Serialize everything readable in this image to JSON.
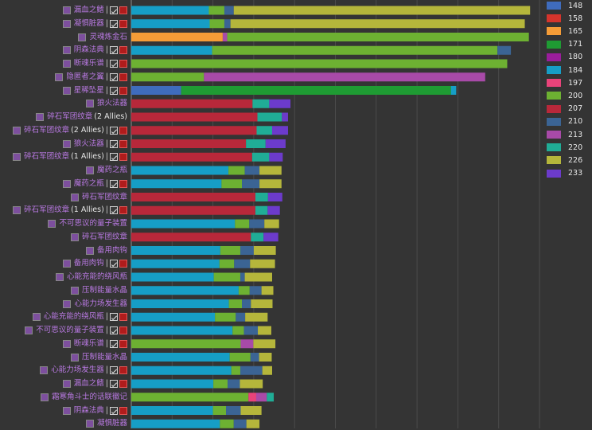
{
  "legend": [
    {
      "label": "148",
      "color": "#3f6cbd"
    },
    {
      "label": "158",
      "color": "#d5342c"
    },
    {
      "label": "165",
      "color": "#f59c37"
    },
    {
      "label": "171",
      "color": "#1f9b33"
    },
    {
      "label": "180",
      "color": "#9a1d9b"
    },
    {
      "label": "184",
      "color": "#169ec6"
    },
    {
      "label": "197",
      "color": "#e9437a"
    },
    {
      "label": "200",
      "color": "#6db132"
    },
    {
      "label": "207",
      "color": "#b8283a"
    },
    {
      "label": "210",
      "color": "#3b6494"
    },
    {
      "label": "213",
      "color": "#a84aa8"
    },
    {
      "label": "220",
      "color": "#20ad96"
    },
    {
      "label": "226",
      "color": "#b5b63b"
    },
    {
      "label": "233",
      "color": "#6c3bcb"
    }
  ],
  "chart_data": {
    "type": "bar",
    "orientation": "horizontal",
    "stacked": true,
    "xlim": [
      0,
      100
    ],
    "grid": true,
    "rows": [
      {
        "name": "漏血之鳍",
        "icons": 3,
        "segments": [
          {
            "key": "184",
            "value": 19
          },
          {
            "key": "200",
            "value": 3.8
          },
          {
            "key": "210",
            "value": 2.3
          },
          {
            "key": "226",
            "value": 72.6
          }
        ]
      },
      {
        "name": "凝惧脏器",
        "icons": 3,
        "segments": [
          {
            "key": "184",
            "value": 19.2
          },
          {
            "key": "200",
            "value": 3.6
          },
          {
            "key": "210",
            "value": 1.5
          },
          {
            "key": "226",
            "value": 72.1
          }
        ]
      },
      {
        "name": "灵魂炼金石",
        "icons": 1,
        "segments": [
          {
            "key": "165",
            "value": 22.4
          },
          {
            "key": "213",
            "value": 1.1
          },
          {
            "key": "200",
            "value": 73.9
          }
        ]
      },
      {
        "name": "阴森法典",
        "icons": 3,
        "segments": [
          {
            "key": "184",
            "value": 19.8
          },
          {
            "key": "200",
            "value": 69.9
          },
          {
            "key": "210",
            "value": 3.3
          }
        ]
      },
      {
        "name": "断魂乐谱",
        "icons": 3,
        "segments": [
          {
            "key": "200",
            "value": 92.1
          }
        ]
      },
      {
        "name": "隐匿者之翼",
        "icons": 3,
        "segments": [
          {
            "key": "200",
            "value": 17.8
          },
          {
            "key": "213",
            "value": 68.9
          }
        ]
      },
      {
        "name": "星稀坠星",
        "icons": 3,
        "segments": [
          {
            "key": "148",
            "value": 12.2
          },
          {
            "key": "171",
            "value": 66.1
          },
          {
            "key": "184",
            "value": 1.3
          }
        ]
      },
      {
        "name": "狼火法器",
        "icons": 1,
        "segments": [
          {
            "key": "207",
            "value": 29.7
          },
          {
            "key": "220",
            "value": 4.1
          },
          {
            "key": "233",
            "value": 5.2
          }
        ]
      },
      {
        "name": "碎石军团纹章",
        "extra": " (2 Allies)",
        "icons": 1,
        "segments": [
          {
            "key": "207",
            "value": 30.9
          },
          {
            "key": "220",
            "value": 6
          },
          {
            "key": "233",
            "value": 1.5
          }
        ]
      },
      {
        "name": "碎石军团纹章",
        "extra": " (2 Allies)",
        "icons": 3,
        "segments": [
          {
            "key": "207",
            "value": 30.7
          },
          {
            "key": "220",
            "value": 3.8
          },
          {
            "key": "233",
            "value": 3.9
          }
        ]
      },
      {
        "name": "狼火法器",
        "icons": 3,
        "segments": [
          {
            "key": "207",
            "value": 28.1
          },
          {
            "key": "220",
            "value": 4.8
          },
          {
            "key": "233",
            "value": 4.9
          }
        ]
      },
      {
        "name": "碎石军团纹章",
        "extra": " (1 Allies)",
        "icons": 3,
        "segments": [
          {
            "key": "207",
            "value": 29.6
          },
          {
            "key": "220",
            "value": 4.2
          },
          {
            "key": "233",
            "value": 3.3
          }
        ]
      },
      {
        "name": "魔药之瓶",
        "icons": 1,
        "segments": [
          {
            "key": "184",
            "value": 23.8
          },
          {
            "key": "200",
            "value": 4
          },
          {
            "key": "210",
            "value": 3.6
          },
          {
            "key": "226",
            "value": 5.4
          }
        ]
      },
      {
        "name": "魔药之瓶",
        "icons": 3,
        "segments": [
          {
            "key": "184",
            "value": 22.1
          },
          {
            "key": "200",
            "value": 5
          },
          {
            "key": "210",
            "value": 4.3
          },
          {
            "key": "226",
            "value": 5.4
          }
        ]
      },
      {
        "name": "碎石军团纹章",
        "icons": 1,
        "segments": [
          {
            "key": "207",
            "value": 30.4
          },
          {
            "key": "220",
            "value": 3.1
          },
          {
            "key": "233",
            "value": 3.5
          }
        ]
      },
      {
        "name": "碎石军团纹章",
        "extra": " (1 Allies)",
        "icons": 3,
        "segments": [
          {
            "key": "207",
            "value": 30.4
          },
          {
            "key": "220",
            "value": 3
          },
          {
            "key": "233",
            "value": 3
          }
        ]
      },
      {
        "name": "不可思议的量子装置",
        "icons": 1,
        "segments": [
          {
            "key": "184",
            "value": 25.4
          },
          {
            "key": "200",
            "value": 3.5
          },
          {
            "key": "210",
            "value": 3.7
          },
          {
            "key": "226",
            "value": 3.6
          }
        ]
      },
      {
        "name": "碎石军团纹章",
        "icons": 1,
        "segments": [
          {
            "key": "207",
            "value": 29.3
          },
          {
            "key": "220",
            "value": 3.1
          },
          {
            "key": "233",
            "value": 3.6
          }
        ]
      },
      {
        "name": "备用肉钩",
        "icons": 1,
        "segments": [
          {
            "key": "184",
            "value": 21.8
          },
          {
            "key": "200",
            "value": 4.9
          },
          {
            "key": "210",
            "value": 3.3
          },
          {
            "key": "226",
            "value": 5.4
          }
        ]
      },
      {
        "name": "备用肉钩",
        "icons": 3,
        "segments": [
          {
            "key": "184",
            "value": 21.6
          },
          {
            "key": "200",
            "value": 3.6
          },
          {
            "key": "210",
            "value": 3.9
          },
          {
            "key": "226",
            "value": 6.1
          }
        ]
      },
      {
        "name": "心能充能的绕风瓶",
        "icons": 1,
        "segments": [
          {
            "key": "184",
            "value": 20.2
          },
          {
            "key": "200",
            "value": 6.5
          },
          {
            "key": "210",
            "value": 1.1
          },
          {
            "key": "226",
            "value": 6.7
          }
        ]
      },
      {
        "name": "压制能量水晶",
        "icons": 1,
        "segments": [
          {
            "key": "184",
            "value": 26.3
          },
          {
            "key": "200",
            "value": 2.7
          },
          {
            "key": "210",
            "value": 2.9
          },
          {
            "key": "226",
            "value": 2.9
          }
        ]
      },
      {
        "name": "心能力场发生器",
        "icons": 1,
        "segments": [
          {
            "key": "184",
            "value": 23.9
          },
          {
            "key": "200",
            "value": 3.2
          },
          {
            "key": "210",
            "value": 2.2
          },
          {
            "key": "226",
            "value": 5.3
          }
        ]
      },
      {
        "name": "心能充能的绕风瓶",
        "icons": 3,
        "segments": [
          {
            "key": "184",
            "value": 20.5
          },
          {
            "key": "200",
            "value": 5.1
          },
          {
            "key": "210",
            "value": 2.3
          },
          {
            "key": "226",
            "value": 5.5
          }
        ]
      },
      {
        "name": "不可思议的量子装置",
        "icons": 3,
        "segments": [
          {
            "key": "184",
            "value": 24.8
          },
          {
            "key": "200",
            "value": 2.8
          },
          {
            "key": "210",
            "value": 3.4
          },
          {
            "key": "226",
            "value": 3.3
          }
        ]
      },
      {
        "name": "断魂乐谱",
        "icons": 3,
        "segments": [
          {
            "key": "200",
            "value": 26.8
          },
          {
            "key": "213",
            "value": 3.1
          },
          {
            "key": "226",
            "value": 5.4
          }
        ]
      },
      {
        "name": "压制能量水晶",
        "icons": 1,
        "segments": [
          {
            "key": "184",
            "value": 24.1
          },
          {
            "key": "200",
            "value": 5.1
          },
          {
            "key": "210",
            "value": 2.1
          },
          {
            "key": "226",
            "value": 3.1
          }
        ]
      },
      {
        "name": "心能力场发生器",
        "icons": 3,
        "segments": [
          {
            "key": "184",
            "value": 24.5
          },
          {
            "key": "200",
            "value": 2.2
          },
          {
            "key": "210",
            "value": 5.4
          },
          {
            "key": "226",
            "value": 2.4
          }
        ]
      },
      {
        "name": "漏血之鳍",
        "icons": 3,
        "segments": [
          {
            "key": "184",
            "value": 20.1
          },
          {
            "key": "200",
            "value": 3.5
          },
          {
            "key": "210",
            "value": 3
          },
          {
            "key": "226",
            "value": 5.6
          }
        ]
      },
      {
        "name": "霜寒角斗士的话联徽记",
        "icons": 1,
        "segments": [
          {
            "key": "200",
            "value": 28.7
          },
          {
            "key": "197",
            "value": 1.9
          },
          {
            "key": "213",
            "value": 2.6
          },
          {
            "key": "220",
            "value": 1.7
          }
        ]
      },
      {
        "name": "阴森法典",
        "icons": 3,
        "segments": [
          {
            "key": "184",
            "value": 20
          },
          {
            "key": "200",
            "value": 3.2
          },
          {
            "key": "210",
            "value": 3.6
          },
          {
            "key": "226",
            "value": 5.1
          }
        ]
      },
      {
        "name": "凝惧脏器",
        "icons": 1,
        "segments": [
          {
            "key": "184",
            "value": 21.7
          },
          {
            "key": "200",
            "value": 3.4
          },
          {
            "key": "210",
            "value": 3.1
          },
          {
            "key": "226",
            "value": 3.2
          }
        ]
      }
    ]
  }
}
